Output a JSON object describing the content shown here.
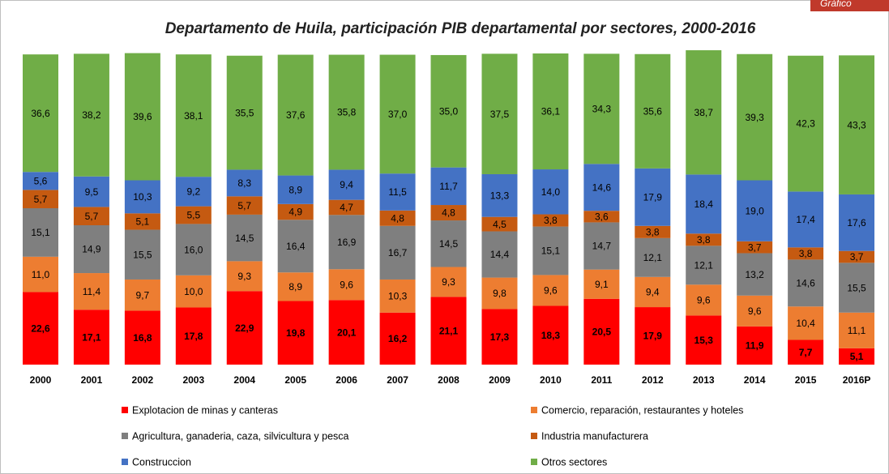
{
  "corner_label": "Gráfico",
  "chart_data": {
    "type": "stacked_bar",
    "title": "Departamento de Huila, participación PIB departamental por sectores, 2000-2016",
    "categories": [
      "2000",
      "2001",
      "2002",
      "2003",
      "2004",
      "2005",
      "2006",
      "2007",
      "2008",
      "2009",
      "2010",
      "2011",
      "2012",
      "2013",
      "2014",
      "2015",
      "2016P"
    ],
    "series": [
      {
        "name": "Explotacion de minas y canteras",
        "color": "#ff0000",
        "values": [
          22.6,
          17.1,
          16.8,
          17.8,
          22.9,
          19.8,
          20.1,
          16.2,
          21.1,
          17.3,
          18.3,
          20.5,
          17.9,
          15.3,
          11.9,
          7.7,
          5.1
        ],
        "value_labels": [
          "22,6",
          "17,1",
          "16,8",
          "17,8",
          "22,9",
          "19,8",
          "20,1",
          "16,2",
          "21,1",
          "17,3",
          "18,3",
          "20,5",
          "17,9",
          "15,3",
          "11,9",
          "7,7",
          "5,1"
        ]
      },
      {
        "name": "Comercio, reparación, restaurantes y hoteles",
        "color": "#ed7d31",
        "values": [
          11.0,
          11.4,
          9.7,
          10.0,
          9.3,
          8.9,
          9.6,
          10.3,
          9.3,
          9.8,
          9.6,
          9.1,
          9.4,
          9.6,
          9.6,
          10.4,
          11.1
        ],
        "value_labels": [
          "11,0",
          "11,4",
          "9,7",
          "10,0",
          "9,3",
          "8,9",
          "9,6",
          "10,3",
          "9,3",
          "9,8",
          "9,6",
          "9,1",
          "9,4",
          "9,6",
          "9,6",
          "10,4",
          "11,1"
        ]
      },
      {
        "name": "Agricultura, ganaderia, caza, silvicultura y pesca",
        "color": "#7f7f7f",
        "values": [
          15.1,
          14.9,
          15.5,
          16.0,
          14.5,
          16.4,
          16.9,
          16.7,
          14.5,
          14.4,
          15.1,
          14.7,
          12.1,
          12.1,
          13.2,
          14.6,
          15.5
        ],
        "value_labels": [
          "15,1",
          "14,9",
          "15,5",
          "16,0",
          "14,5",
          "16,4",
          "16,9",
          "16,7",
          "14,5",
          "14,4",
          "15,1",
          "14,7",
          "12,1",
          "12,1",
          "13,2",
          "14,6",
          "15,5"
        ]
      },
      {
        "name": "Industria manufacturera",
        "color": "#c55a11",
        "values": [
          5.7,
          5.7,
          5.1,
          5.5,
          5.7,
          4.9,
          4.7,
          4.8,
          4.8,
          4.5,
          3.8,
          3.6,
          3.8,
          3.8,
          3.7,
          3.8,
          3.7
        ],
        "value_labels": [
          "5,7",
          "5,7",
          "5,1",
          "5,5",
          "5,7",
          "4,9",
          "4,7",
          "4,8",
          "4,8",
          "4,5",
          "3,8",
          "3,6",
          "3,8",
          "3,8",
          "3,7",
          "3,8",
          "3,7"
        ]
      },
      {
        "name": "Construccion",
        "color": "#4472c4",
        "values": [
          5.6,
          9.5,
          10.3,
          9.2,
          8.3,
          8.9,
          9.4,
          11.5,
          11.7,
          13.3,
          14.0,
          14.6,
          17.9,
          18.4,
          19.0,
          17.4,
          17.6
        ],
        "value_labels": [
          "5,6",
          "9,5",
          "10,3",
          "9,2",
          "8,3",
          "8,9",
          "9,4",
          "11,5",
          "11,7",
          "13,3",
          "14,0",
          "14,6",
          "17,9",
          "18,4",
          "19,0",
          "17,4",
          "17,6"
        ]
      },
      {
        "name": "Otros sectores",
        "color": "#70ad47",
        "values": [
          36.6,
          38.2,
          39.6,
          38.1,
          35.5,
          37.6,
          35.8,
          37.0,
          35.0,
          37.5,
          36.1,
          34.3,
          35.6,
          38.7,
          39.3,
          42.3,
          43.3
        ],
        "value_labels": [
          "36,6",
          "38,2",
          "39,6",
          "38,1",
          "35,5",
          "37,6",
          "35,8",
          "37,0",
          "35,0",
          "37,5",
          "36,1",
          "34,3",
          "35,6",
          "38,7",
          "39,3",
          "42,3",
          "43,3"
        ]
      }
    ]
  }
}
